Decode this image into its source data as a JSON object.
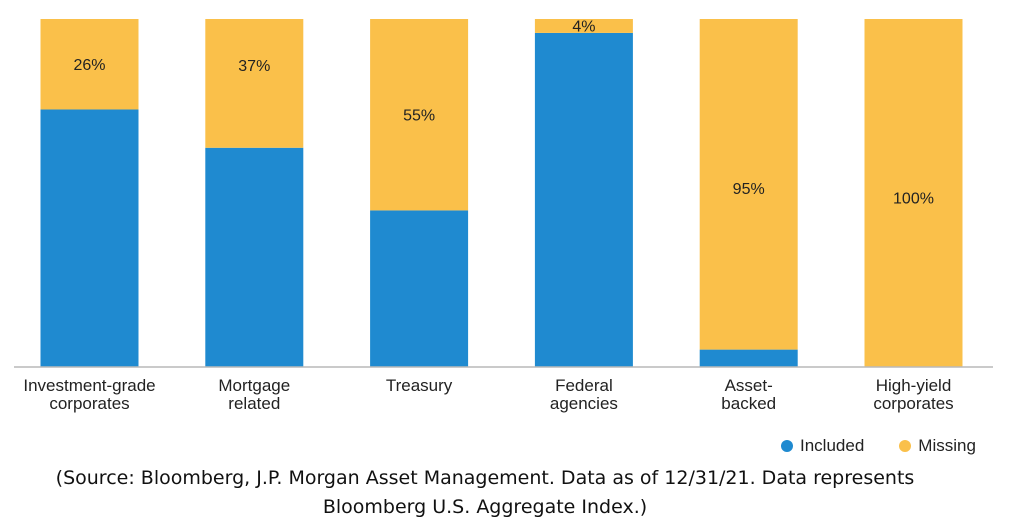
{
  "chart_data": {
    "type": "bar",
    "stacked": true,
    "normalized_percent": true,
    "categories": [
      [
        "Investment-grade",
        "corporates"
      ],
      [
        "Mortgage",
        "related"
      ],
      [
        "Treasury"
      ],
      [
        "Federal",
        "agencies"
      ],
      [
        "Asset-",
        "backed"
      ],
      [
        "High-yield",
        "corporates"
      ]
    ],
    "series": [
      {
        "name": "Included",
        "color": "#1f8ad0",
        "values": [
          74,
          63,
          45,
          96,
          5,
          0
        ]
      },
      {
        "name": "Missing",
        "color": "#fac04a",
        "values": [
          26,
          37,
          55,
          4,
          95,
          100
        ]
      }
    ],
    "data_labels": [
      "26%",
      "37%",
      "55%",
      "4%",
      "95%",
      "100%"
    ],
    "ylim": [
      0,
      100
    ],
    "grid": false,
    "legend_position": "bottom-right",
    "title": "",
    "xlabel": "",
    "ylabel": ""
  },
  "source": {
    "line1": "(Source: Bloomberg, J.P. Morgan Asset Management. Data as of 12/31/21. Data represents",
    "line2": "Bloomberg U.S. Aggregate Index.)"
  }
}
